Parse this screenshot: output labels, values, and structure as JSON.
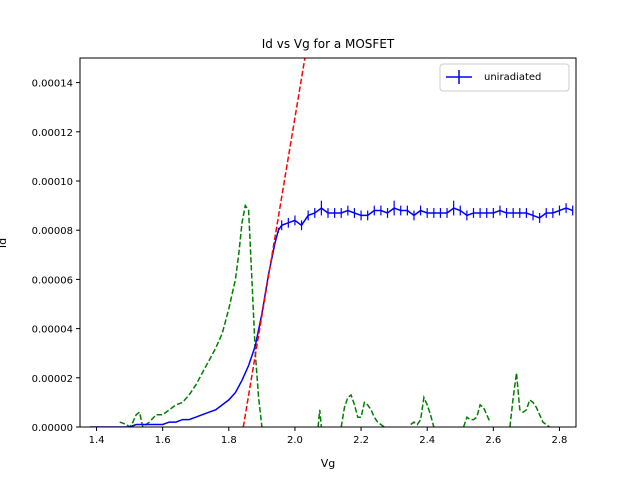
{
  "chart_data": {
    "type": "line",
    "title": "Id vs Vg for a MOSFET",
    "xlabel": "Vg",
    "ylabel": "Id",
    "xlim": [
      1.35,
      2.85
    ],
    "ylim": [
      0,
      0.00015
    ],
    "xticks": [
      1.4,
      1.6,
      1.8,
      2.0,
      2.2,
      2.4,
      2.6,
      2.8
    ],
    "xtick_labels": [
      "1.4",
      "1.6",
      "1.8",
      "2.0",
      "2.2",
      "2.4",
      "2.6",
      "2.8"
    ],
    "yticks": [
      0,
      2e-05,
      4e-05,
      6e-05,
      8e-05,
      0.0001,
      0.00012,
      0.00014
    ],
    "ytick_labels": [
      "0.00000",
      "0.00002",
      "0.00004",
      "0.00006",
      "0.00008",
      "0.00010",
      "0.00012",
      "0.00014"
    ],
    "grid": false,
    "legend_position": "top-right",
    "colors": {
      "measured": "#0000ff",
      "fit": "#ff0000",
      "derivative": "#008000"
    },
    "series": [
      {
        "name": "uniradiated",
        "style": "solid-with-errorbars",
        "color": "#0000ff",
        "x": [
          1.38,
          1.4,
          1.42,
          1.44,
          1.46,
          1.48,
          1.5,
          1.52,
          1.54,
          1.56,
          1.58,
          1.6,
          1.62,
          1.64,
          1.66,
          1.68,
          1.7,
          1.72,
          1.74,
          1.76,
          1.78,
          1.8,
          1.82,
          1.84,
          1.86,
          1.88,
          1.9,
          1.92,
          1.94,
          1.95,
          1.96,
          1.98,
          2.0,
          2.02,
          2.04,
          2.06,
          2.08,
          2.1,
          2.12,
          2.14,
          2.16,
          2.18,
          2.2,
          2.22,
          2.24,
          2.26,
          2.28,
          2.3,
          2.32,
          2.34,
          2.36,
          2.38,
          2.4,
          2.42,
          2.44,
          2.46,
          2.48,
          2.5,
          2.52,
          2.54,
          2.56,
          2.58,
          2.6,
          2.62,
          2.64,
          2.66,
          2.68,
          2.7,
          2.72,
          2.74,
          2.76,
          2.78,
          2.8,
          2.82,
          2.84
        ],
        "y": [
          0,
          0,
          0,
          0,
          0,
          0,
          0,
          1e-06,
          1e-06,
          1e-06,
          1e-06,
          1e-06,
          2e-06,
          2e-06,
          3e-06,
          3e-06,
          4e-06,
          5e-06,
          6e-06,
          7e-06,
          9e-06,
          1.1e-05,
          1.4e-05,
          1.9e-05,
          2.5e-05,
          3.3e-05,
          4.6e-05,
          6.2e-05,
          7.5e-05,
          8e-05,
          8.2e-05,
          8.3e-05,
          8.4e-05,
          8.2e-05,
          8.6e-05,
          8.7e-05,
          8.9e-05,
          8.7e-05,
          8.7e-05,
          8.7e-05,
          8.8e-05,
          8.7e-05,
          8.6e-05,
          8.6e-05,
          8.8e-05,
          8.8e-05,
          8.7e-05,
          8.9e-05,
          8.8e-05,
          8.8e-05,
          8.6e-05,
          8.8e-05,
          8.7e-05,
          8.7e-05,
          8.7e-05,
          8.7e-05,
          8.9e-05,
          8.8e-05,
          8.6e-05,
          8.7e-05,
          8.7e-05,
          8.7e-05,
          8.7e-05,
          8.8e-05,
          8.7e-05,
          8.7e-05,
          8.7e-05,
          8.7e-05,
          8.6e-05,
          8.5e-05,
          8.7e-05,
          8.7e-05,
          8.8e-05,
          8.9e-05,
          8.8e-05
        ],
        "err": [
          0,
          0,
          0,
          0,
          0,
          0,
          0,
          0,
          0,
          0,
          0,
          0,
          0,
          0,
          0,
          0,
          0,
          0,
          0,
          0,
          0,
          0,
          0,
          0,
          0,
          0,
          0,
          0,
          0,
          1e-06,
          2e-06,
          2e-06,
          2e-06,
          2e-06,
          2e-06,
          2e-06,
          3e-06,
          2e-06,
          2e-06,
          2e-06,
          2e-06,
          2e-06,
          2e-06,
          2e-06,
          2e-06,
          2e-06,
          2e-06,
          3e-06,
          2e-06,
          2e-06,
          2e-06,
          2e-06,
          2e-06,
          2e-06,
          2e-06,
          2e-06,
          3e-06,
          2e-06,
          2e-06,
          2e-06,
          2e-06,
          2e-06,
          2e-06,
          2e-06,
          2e-06,
          2e-06,
          2e-06,
          2e-06,
          2e-06,
          2e-06,
          2e-06,
          2e-06,
          2e-06,
          2e-06,
          2e-06
        ]
      },
      {
        "name": "",
        "style": "dashed",
        "color": "#ff0000",
        "x": [
          1.844,
          2.03
        ],
        "y": [
          0,
          0.00015
        ]
      },
      {
        "name": "",
        "style": "dashed",
        "color": "#008000",
        "x": [
          1.47,
          1.49,
          1.5,
          1.51,
          1.52,
          1.53,
          1.54,
          1.56,
          1.58,
          1.6,
          1.62,
          1.64,
          1.66,
          1.68,
          1.7,
          1.72,
          1.74,
          1.76,
          1.78,
          1.8,
          1.82,
          1.83,
          1.84,
          1.85,
          1.86,
          1.87,
          1.88,
          1.89,
          1.9,
          null,
          2.07,
          2.075,
          2.08,
          null,
          2.14,
          2.15,
          2.16,
          2.17,
          2.18,
          2.19,
          2.2,
          2.21,
          2.22,
          2.23,
          2.24,
          2.25,
          2.26,
          2.27,
          null,
          2.35,
          2.36,
          2.37,
          2.38,
          2.39,
          2.4,
          2.41,
          2.42,
          null,
          2.51,
          2.52,
          2.53,
          2.54,
          2.55,
          2.56,
          2.57,
          2.58,
          2.59,
          null,
          2.65,
          2.66,
          2.67,
          2.68,
          2.69,
          2.7,
          2.71,
          2.72,
          2.73,
          2.74,
          2.75,
          2.76,
          2.77
        ],
        "y": [
          2e-06,
          1e-06,
          0,
          2e-06,
          5e-06,
          6e-06,
          0,
          2e-06,
          5e-06,
          5e-06,
          7e-06,
          9e-06,
          1e-05,
          1.3e-05,
          1.7e-05,
          2.2e-05,
          2.7e-05,
          3.2e-05,
          3.8e-05,
          4.8e-05,
          6e-05,
          7e-05,
          8.3e-05,
          9e-05,
          8.8e-05,
          6e-05,
          3e-05,
          1.2e-05,
          0,
          null,
          0,
          7e-06,
          0,
          null,
          0,
          8e-06,
          1.2e-05,
          1.3e-05,
          9e-06,
          4e-06,
          4e-06,
          1e-05,
          9e-06,
          7e-06,
          4e-06,
          2e-06,
          1e-06,
          0,
          null,
          1e-06,
          2e-06,
          1e-06,
          3e-06,
          1.2e-05,
          9e-06,
          5e-06,
          0,
          null,
          0,
          4e-06,
          3e-06,
          3e-06,
          4e-06,
          9e-06,
          8e-06,
          5e-06,
          2e-06,
          null,
          0,
          1.2e-05,
          2.2e-05,
          7e-06,
          6e-06,
          7e-06,
          1.1e-05,
          1e-05,
          8e-06,
          5e-06,
          2e-06,
          1e-06,
          0
        ]
      }
    ]
  }
}
